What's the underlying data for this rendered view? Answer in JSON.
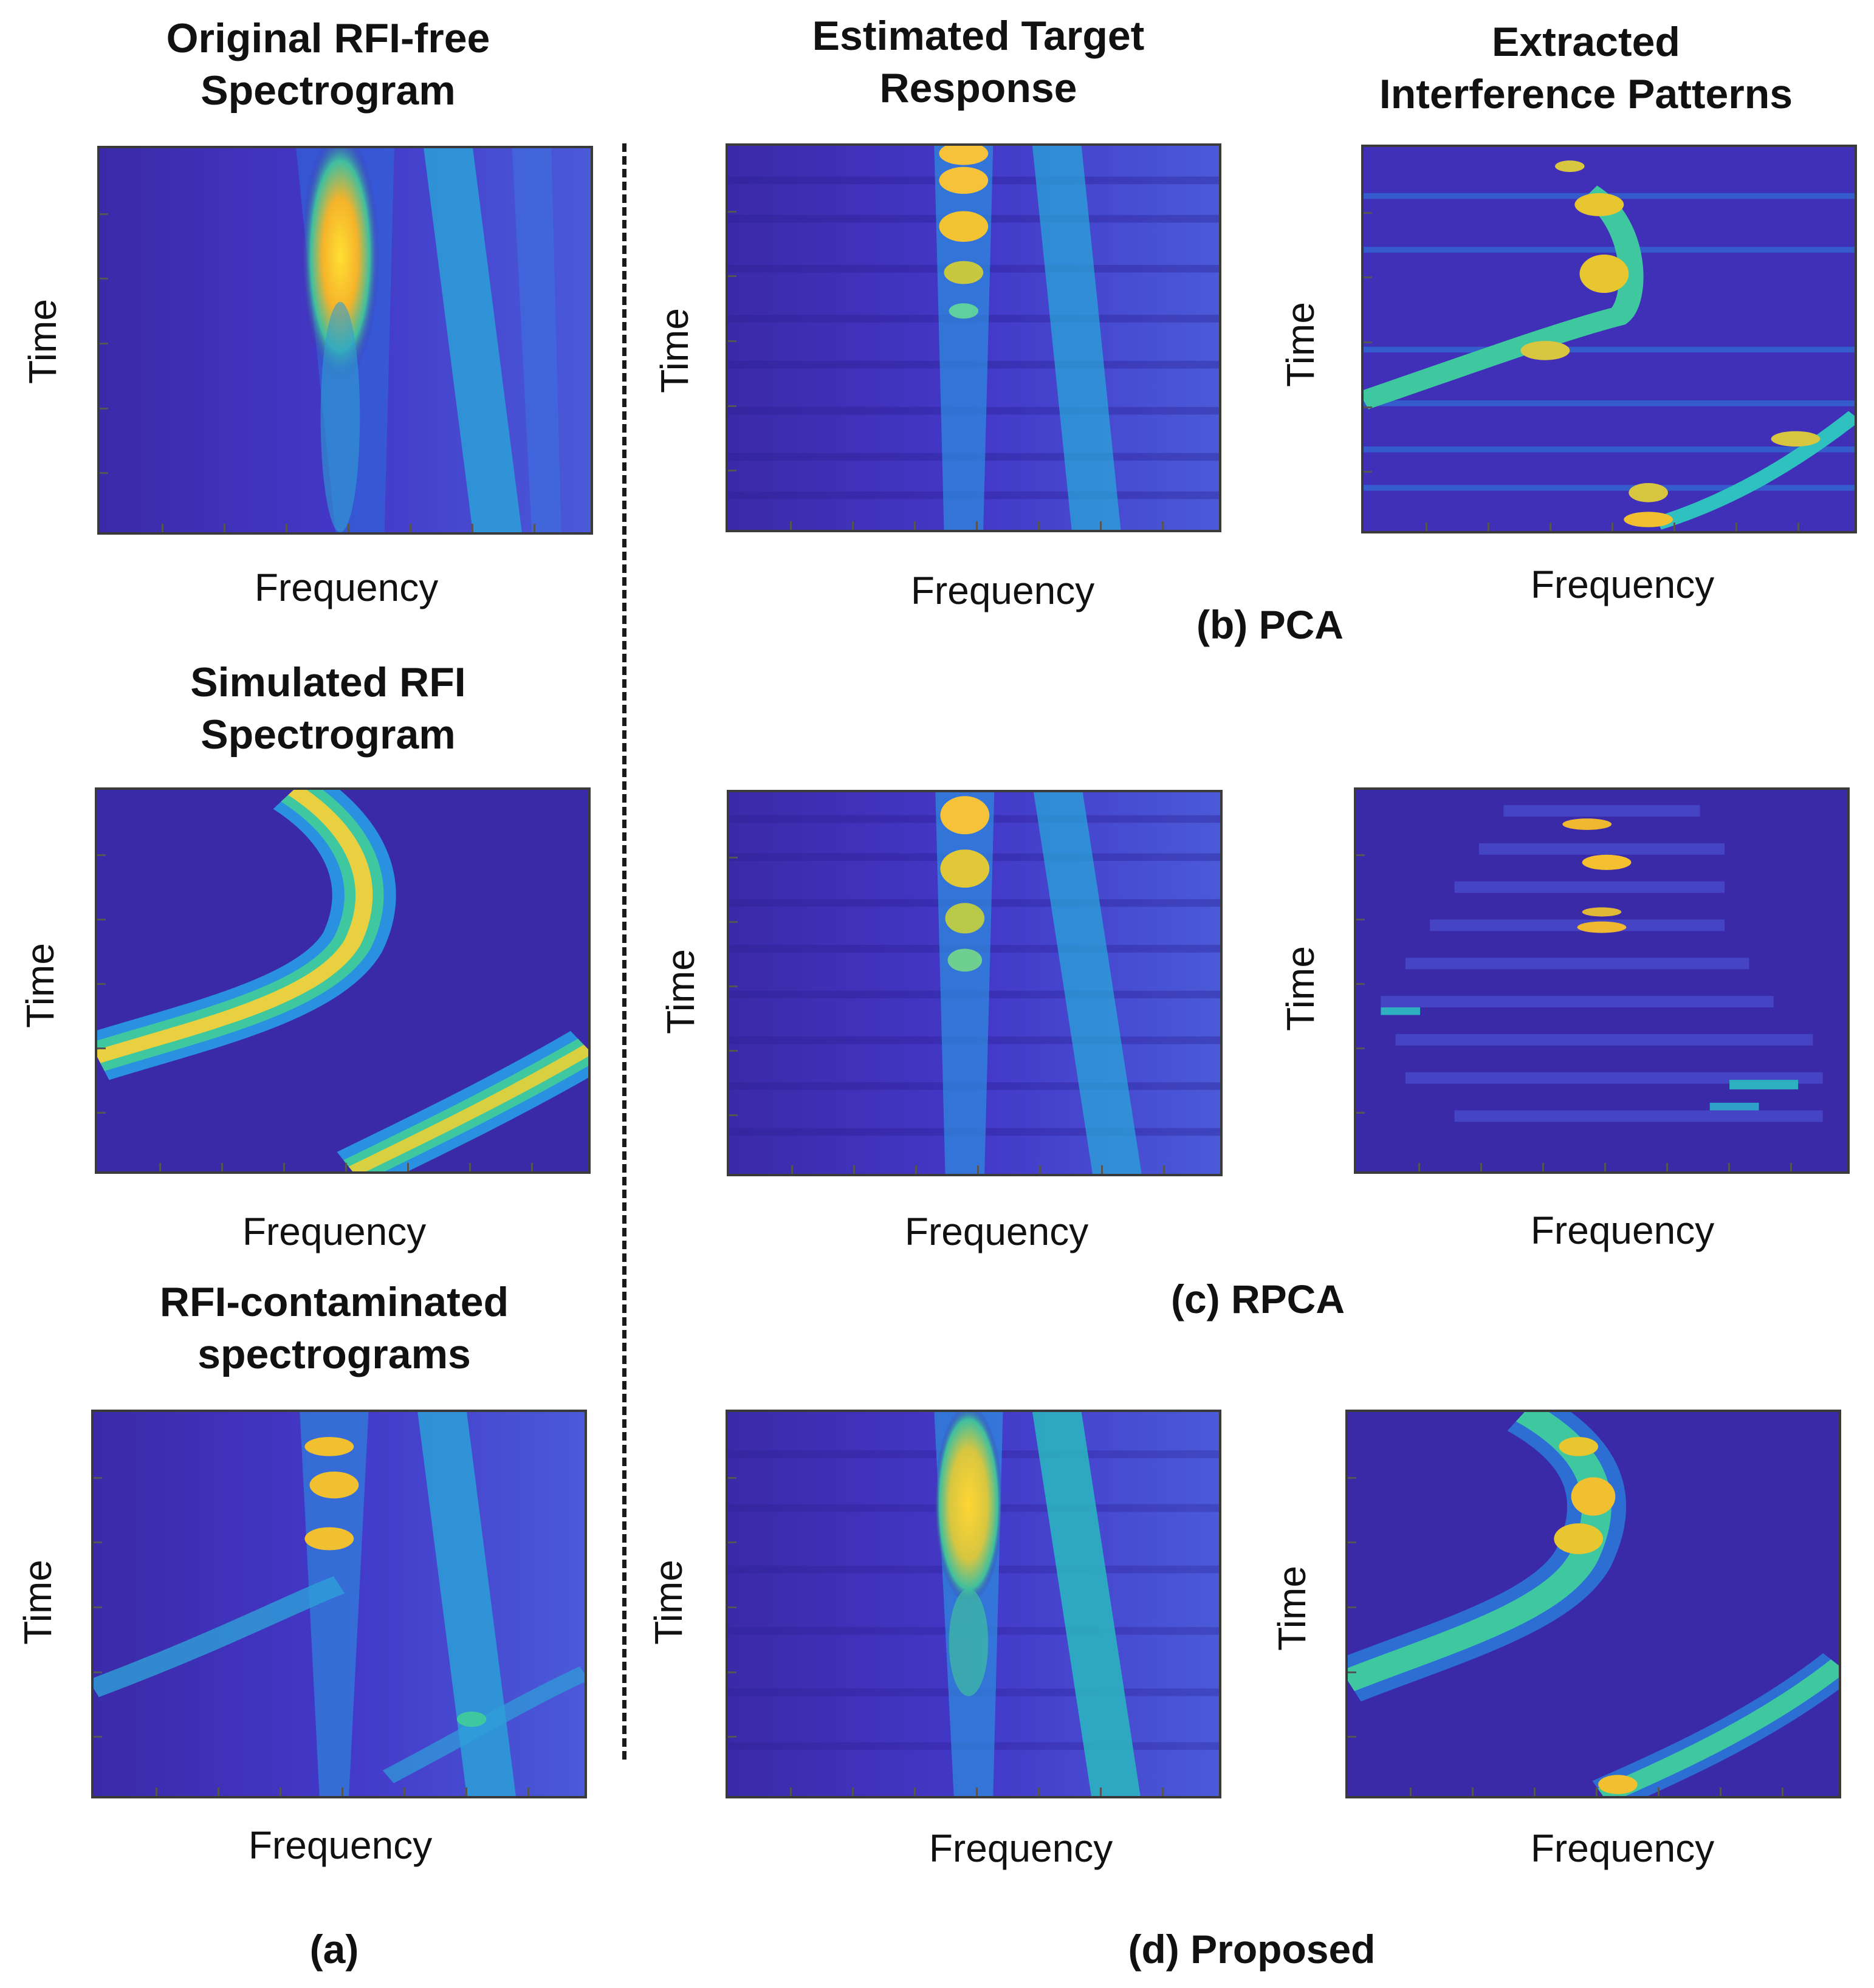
{
  "titles": {
    "original": "Original RFI-free\nSpectrogram",
    "simulated": "Simulated RFI\nSpectrogram",
    "contaminated": "RFI-contaminated\nspectrograms",
    "estimated_target": "Estimated Target\nResponse",
    "extracted_interference": "Extracted\nInterference Patterns"
  },
  "axes": {
    "x": "Frequency",
    "y": "Time"
  },
  "captions": {
    "a": "(a)",
    "b": "(b) PCA",
    "c": "(c) RPCA",
    "d": "(d) Proposed"
  },
  "colors": {
    "background": "#3e26a8",
    "low": "#4a3fd0",
    "mid": "#2f8fe0",
    "cyan": "#1fbfc0",
    "yellow": "#ffd633",
    "orange": "#f5b32a"
  }
}
